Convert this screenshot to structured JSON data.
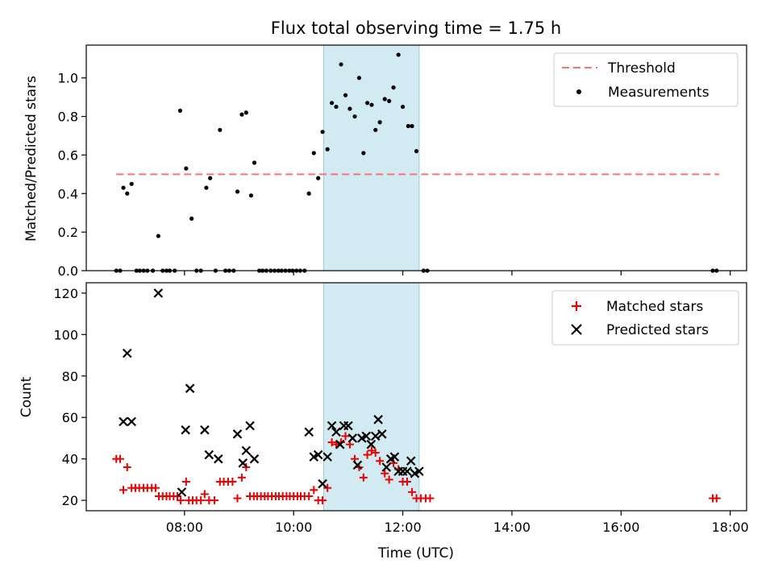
{
  "title": "Flux total observing time = 1.75 h",
  "colors": {
    "threshold": "#ff7070",
    "measurement": "#000000",
    "matched": "#ee0000",
    "predicted": "#000000",
    "span": "#add8e6"
  },
  "chart_data": [
    {
      "type": "scatter",
      "ylabel": "Matched/Predicted stars",
      "ylim": [
        0,
        1.17
      ],
      "yticks": [
        0.0,
        0.2,
        0.4,
        0.6,
        0.8,
        1.0
      ],
      "ytick_labels": [
        "0.0",
        "0.2",
        "0.4",
        "0.6",
        "0.8",
        "1.0"
      ],
      "xlim_hours": [
        6.2,
        18.3
      ],
      "grid": false,
      "legend_position": "upper right",
      "highlight_span_hours": [
        10.55,
        12.3
      ],
      "threshold": {
        "name": "Threshold",
        "y": 0.5,
        "x_range_hours": [
          6.75,
          17.8
        ]
      },
      "series": [
        {
          "name": "Measurements",
          "points": [
            [
              6.75,
              0
            ],
            [
              6.82,
              0
            ],
            [
              6.88,
              0.43
            ],
            [
              6.95,
              0.4
            ],
            [
              7.03,
              0.45
            ],
            [
              7.12,
              0
            ],
            [
              7.18,
              0
            ],
            [
              7.25,
              0
            ],
            [
              7.32,
              0
            ],
            [
              7.42,
              0
            ],
            [
              7.52,
              0.18
            ],
            [
              7.6,
              0
            ],
            [
              7.67,
              0
            ],
            [
              7.73,
              0
            ],
            [
              7.82,
              0
            ],
            [
              7.92,
              0.83
            ],
            [
              8.03,
              0.53
            ],
            [
              8.13,
              0.27
            ],
            [
              8.22,
              0
            ],
            [
              8.3,
              0
            ],
            [
              8.4,
              0.43
            ],
            [
              8.47,
              0.48
            ],
            [
              8.57,
              0
            ],
            [
              8.65,
              0.73
            ],
            [
              8.75,
              0
            ],
            [
              8.82,
              0
            ],
            [
              8.9,
              0
            ],
            [
              8.97,
              0.41
            ],
            [
              9.05,
              0.81
            ],
            [
              9.13,
              0.82
            ],
            [
              9.22,
              0.39
            ],
            [
              9.28,
              0.56
            ],
            [
              9.37,
              0
            ],
            [
              9.43,
              0
            ],
            [
              9.5,
              0
            ],
            [
              9.58,
              0
            ],
            [
              9.65,
              0
            ],
            [
              9.72,
              0
            ],
            [
              9.78,
              0
            ],
            [
              9.85,
              0
            ],
            [
              9.92,
              0
            ],
            [
              9.98,
              0
            ],
            [
              10.05,
              0
            ],
            [
              10.12,
              0
            ],
            [
              10.2,
              0
            ],
            [
              10.28,
              0.4
            ],
            [
              10.37,
              0.61
            ],
            [
              10.45,
              0.48
            ],
            [
              10.53,
              0.72
            ],
            [
              10.62,
              0.63
            ],
            [
              10.7,
              0.87
            ],
            [
              10.78,
              0.85
            ],
            [
              10.87,
              1.07
            ],
            [
              10.95,
              0.91
            ],
            [
              11.03,
              0.84
            ],
            [
              11.12,
              0.8
            ],
            [
              11.2,
              1.0
            ],
            [
              11.28,
              0.61
            ],
            [
              11.35,
              0.87
            ],
            [
              11.43,
              0.86
            ],
            [
              11.5,
              0.73
            ],
            [
              11.58,
              0.77
            ],
            [
              11.67,
              0.89
            ],
            [
              11.75,
              0.88
            ],
            [
              11.83,
              0.95
            ],
            [
              11.92,
              1.12
            ],
            [
              12.0,
              0.85
            ],
            [
              12.1,
              0.75
            ],
            [
              12.17,
              0.75
            ],
            [
              12.25,
              0.62
            ],
            [
              12.38,
              0
            ],
            [
              12.45,
              0
            ],
            [
              17.68,
              0
            ],
            [
              17.75,
              0
            ]
          ]
        }
      ]
    },
    {
      "type": "scatter",
      "xlabel": "Time (UTC)",
      "ylabel": "Count",
      "ylim": [
        15,
        125
      ],
      "yticks": [
        20,
        40,
        60,
        80,
        100,
        120
      ],
      "ytick_labels": [
        "20",
        "40",
        "60",
        "80",
        "100",
        "120"
      ],
      "xlim_hours": [
        6.2,
        18.3
      ],
      "xticks_hours": [
        8,
        10,
        12,
        14,
        16,
        18
      ],
      "xtick_labels": [
        "08:00",
        "10:00",
        "12:00",
        "14:00",
        "16:00",
        "18:00"
      ],
      "grid": false,
      "legend_position": "upper right",
      "highlight_span_hours": [
        10.55,
        12.3
      ],
      "series": [
        {
          "name": "Matched stars",
          "marker": "plus",
          "points": [
            [
              6.75,
              40
            ],
            [
              6.82,
              40
            ],
            [
              6.88,
              25
            ],
            [
              6.95,
              36
            ],
            [
              7.03,
              26
            ],
            [
              7.1,
              26
            ],
            [
              7.17,
              26
            ],
            [
              7.25,
              26
            ],
            [
              7.32,
              26
            ],
            [
              7.4,
              26
            ],
            [
              7.47,
              26
            ],
            [
              7.53,
              22
            ],
            [
              7.6,
              22
            ],
            [
              7.67,
              22
            ],
            [
              7.73,
              22
            ],
            [
              7.8,
              22
            ],
            [
              7.87,
              22
            ],
            [
              7.93,
              20
            ],
            [
              8.03,
              29
            ],
            [
              8.08,
              20
            ],
            [
              8.15,
              20
            ],
            [
              8.22,
              20
            ],
            [
              8.3,
              20
            ],
            [
              8.37,
              23
            ],
            [
              8.45,
              20
            ],
            [
              8.55,
              20
            ],
            [
              8.65,
              29
            ],
            [
              8.72,
              29
            ],
            [
              8.8,
              29
            ],
            [
              8.88,
              29
            ],
            [
              8.97,
              21
            ],
            [
              9.05,
              31
            ],
            [
              9.13,
              36
            ],
            [
              9.2,
              22
            ],
            [
              9.27,
              22
            ],
            [
              9.33,
              22
            ],
            [
              9.4,
              22
            ],
            [
              9.47,
              22
            ],
            [
              9.53,
              22
            ],
            [
              9.6,
              22
            ],
            [
              9.67,
              22
            ],
            [
              9.73,
              22
            ],
            [
              9.8,
              22
            ],
            [
              9.87,
              22
            ],
            [
              9.93,
              22
            ],
            [
              10.0,
              22
            ],
            [
              10.07,
              22
            ],
            [
              10.13,
              22
            ],
            [
              10.2,
              22
            ],
            [
              10.28,
              22
            ],
            [
              10.37,
              25
            ],
            [
              10.45,
              20
            ],
            [
              10.53,
              20
            ],
            [
              10.62,
              26
            ],
            [
              10.7,
              48
            ],
            [
              10.78,
              47
            ],
            [
              10.87,
              48
            ],
            [
              10.95,
              51
            ],
            [
              11.03,
              47
            ],
            [
              11.12,
              40
            ],
            [
              11.2,
              36
            ],
            [
              11.28,
              31
            ],
            [
              11.35,
              42
            ],
            [
              11.43,
              44
            ],
            [
              11.5,
              43
            ],
            [
              11.58,
              39
            ],
            [
              11.67,
              33
            ],
            [
              11.75,
              30
            ],
            [
              11.83,
              38
            ],
            [
              11.92,
              35
            ],
            [
              12.0,
              29
            ],
            [
              12.08,
              29
            ],
            [
              12.17,
              24
            ],
            [
              12.25,
              21
            ],
            [
              12.33,
              21
            ],
            [
              12.42,
              21
            ],
            [
              12.5,
              21
            ],
            [
              17.68,
              21
            ],
            [
              17.75,
              21
            ]
          ]
        },
        {
          "name": "Predicted stars",
          "marker": "x",
          "points": [
            [
              6.88,
              58
            ],
            [
              6.95,
              91
            ],
            [
              7.03,
              58
            ],
            [
              7.52,
              120
            ],
            [
              7.95,
              24
            ],
            [
              8.02,
              54
            ],
            [
              8.1,
              74
            ],
            [
              8.37,
              54
            ],
            [
              8.45,
              42
            ],
            [
              8.62,
              40
            ],
            [
              8.97,
              52
            ],
            [
              9.07,
              38
            ],
            [
              9.13,
              44
            ],
            [
              9.2,
              56
            ],
            [
              9.28,
              40
            ],
            [
              10.28,
              53
            ],
            [
              10.37,
              41
            ],
            [
              10.45,
              42
            ],
            [
              10.53,
              28
            ],
            [
              10.62,
              41
            ],
            [
              10.7,
              56
            ],
            [
              10.78,
              53
            ],
            [
              10.85,
              47
            ],
            [
              10.92,
              56
            ],
            [
              11.0,
              56
            ],
            [
              11.08,
              50
            ],
            [
              11.17,
              37
            ],
            [
              11.25,
              50
            ],
            [
              11.33,
              51
            ],
            [
              11.42,
              47
            ],
            [
              11.5,
              51
            ],
            [
              11.55,
              59
            ],
            [
              11.62,
              52
            ],
            [
              11.7,
              36
            ],
            [
              11.78,
              40
            ],
            [
              11.85,
              41
            ],
            [
              11.92,
              34
            ],
            [
              12.0,
              34
            ],
            [
              12.08,
              34
            ],
            [
              12.15,
              39
            ],
            [
              12.22,
              33
            ],
            [
              12.3,
              34
            ]
          ]
        }
      ]
    }
  ]
}
